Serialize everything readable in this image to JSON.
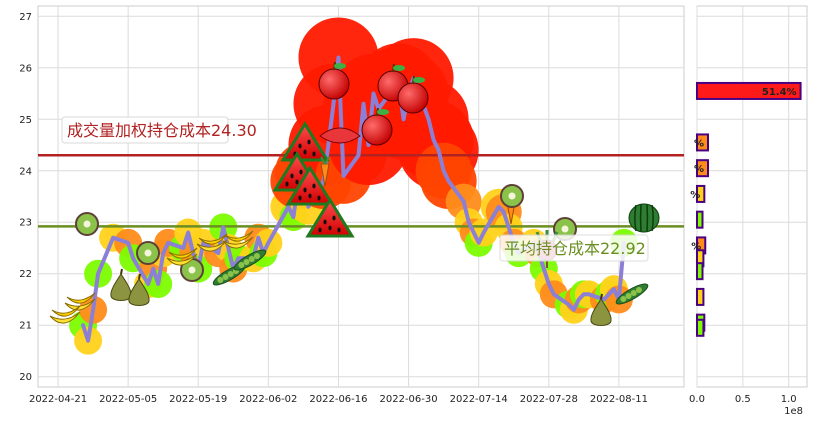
{
  "chart_data": [
    {
      "type": "line",
      "title": "",
      "xlabel": "",
      "ylabel": "",
      "x_tick_labels": [
        "2022-04-21",
        "2022-05-05",
        "2022-05-19",
        "2022-06-02",
        "2022-06-16",
        "2022-06-30",
        "2022-07-14",
        "2022-07-28",
        "2022-08-11"
      ],
      "y_ticks": [
        20,
        21,
        22,
        23,
        24,
        25,
        26,
        27
      ],
      "xlim": [
        "2022-04-17",
        "2022-08-24"
      ],
      "ylim": [
        19.8,
        27.2
      ],
      "grid": true,
      "series": [
        {
          "values": [
            [
              "2022-04-26",
              21.0
            ],
            [
              "2022-04-27",
              20.7
            ],
            [
              "2022-04-28",
              21.3
            ],
            [
              "2022-04-29",
              22.0
            ],
            [
              "2022-05-02",
              22.7
            ],
            [
              "2022-05-05",
              22.6
            ],
            [
              "2022-05-06",
              22.3
            ],
            [
              "2022-05-09",
              21.8
            ],
            [
              "2022-05-10",
              22.1
            ],
            [
              "2022-05-11",
              21.8
            ],
            [
              "2022-05-12",
              22.4
            ],
            [
              "2022-05-13",
              22.6
            ],
            [
              "2022-05-16",
              22.5
            ],
            [
              "2022-05-17",
              22.8
            ],
            [
              "2022-05-18",
              22.4
            ],
            [
              "2022-05-19",
              22.1
            ],
            [
              "2022-05-20",
              22.6
            ],
            [
              "2022-05-23",
              22.4
            ],
            [
              "2022-05-24",
              22.9
            ],
            [
              "2022-05-25",
              22.5
            ],
            [
              "2022-05-26",
              22.1
            ],
            [
              "2022-05-27",
              22.3
            ],
            [
              "2022-05-30",
              22.3
            ],
            [
              "2022-05-31",
              22.7
            ],
            [
              "2022-06-01",
              22.4
            ],
            [
              "2022-06-02",
              22.6
            ],
            [
              "2022-06-06",
              23.3
            ],
            [
              "2022-06-07",
              23.1
            ],
            [
              "2022-06-08",
              23.8
            ],
            [
              "2022-06-09",
              24.0
            ],
            [
              "2022-06-10",
              23.3
            ],
            [
              "2022-06-13",
              23.8
            ],
            [
              "2022-06-14",
              24.5
            ],
            [
              "2022-06-15",
              25.3
            ],
            [
              "2022-06-16",
              26.2
            ],
            [
              "2022-06-17",
              23.9
            ],
            [
              "2022-06-20",
              24.3
            ],
            [
              "2022-06-21",
              25.3
            ],
            [
              "2022-06-22",
              24.5
            ],
            [
              "2022-06-23",
              25.5
            ],
            [
              "2022-06-24",
              25.2
            ],
            [
              "2022-06-27",
              25.6
            ],
            [
              "2022-06-28",
              25.7
            ],
            [
              "2022-06-29",
              25.0
            ],
            [
              "2022-06-30",
              25.5
            ],
            [
              "2022-07-01",
              25.8
            ],
            [
              "2022-07-04",
              25.0
            ],
            [
              "2022-07-05",
              24.6
            ],
            [
              "2022-07-06",
              24.4
            ],
            [
              "2022-07-07",
              24.0
            ],
            [
              "2022-07-08",
              23.8
            ],
            [
              "2022-07-11",
              23.4
            ],
            [
              "2022-07-12",
              23.0
            ],
            [
              "2022-07-13",
              22.8
            ],
            [
              "2022-07-14",
              22.6
            ],
            [
              "2022-07-15",
              22.8
            ],
            [
              "2022-07-18",
              23.3
            ],
            [
              "2022-07-19",
              23.2
            ],
            [
              "2022-07-20",
              22.9
            ],
            [
              "2022-07-21",
              22.6
            ],
            [
              "2022-07-22",
              22.4
            ],
            [
              "2022-07-25",
              22.6
            ],
            [
              "2022-07-26",
              22.4
            ],
            [
              "2022-07-27",
              22.1
            ],
            [
              "2022-07-28",
              21.8
            ],
            [
              "2022-07-29",
              21.6
            ],
            [
              "2022-08-01",
              21.4
            ],
            [
              "2022-08-02",
              21.3
            ],
            [
              "2022-08-03",
              21.5
            ],
            [
              "2022-08-04",
              21.6
            ],
            [
              "2022-08-05",
              21.6
            ],
            [
              "2022-08-08",
              21.5
            ],
            [
              "2022-08-09",
              21.6
            ],
            [
              "2022-08-10",
              21.7
            ],
            [
              "2022-08-11",
              21.5
            ],
            [
              "2022-08-12",
              22.6
            ]
          ]
        }
      ],
      "reference_lines": [
        {
          "label": "成交量加权持仓成本24.30",
          "value": 24.3,
          "color": "#b22222",
          "text_color": "#b22222"
        },
        {
          "label": "平均持仓成本22.92",
          "value": 22.92,
          "color": "#6b8e23",
          "text_color": "#6b8e23"
        }
      ],
      "line_color": "#8c7fd6"
    },
    {
      "type": "bar",
      "orientation": "horizontal",
      "x_tick_labels": [
        "0.0",
        "0.5",
        "1.0"
      ],
      "x_unit": "1e8",
      "xlim": [
        0,
        1.2
      ],
      "ylim": [
        19.8,
        27.2
      ],
      "bars": [
        {
          "price": 25.55,
          "value": 1.13,
          "label": "51.4%",
          "color": "#ff1a1a"
        },
        {
          "price": 24.55,
          "value": 0.12,
          "label": "%",
          "color": "#ff8c1a"
        },
        {
          "price": 24.05,
          "value": 0.12,
          "label": "%",
          "color": "#ff8c1a"
        },
        {
          "price": 23.55,
          "value": 0.08,
          "label": "%",
          "color": "#ffd21a"
        },
        {
          "price": 23.05,
          "value": 0.06,
          "label": "",
          "color": "#7cfc00"
        },
        {
          "price": 22.55,
          "value": 0.09,
          "label": "%",
          "color": "#ff8c1a"
        },
        {
          "price": 22.3,
          "value": 0.07,
          "label": "",
          "color": "#ffd21a"
        },
        {
          "price": 22.05,
          "value": 0.06,
          "label": "",
          "color": "#7cfc00"
        },
        {
          "price": 21.55,
          "value": 0.07,
          "label": "",
          "color": "#ffd21a"
        },
        {
          "price": 21.05,
          "value": 0.08,
          "label": "",
          "color": "#7cfc00"
        },
        {
          "price": 20.95,
          "value": 0.07,
          "label": "",
          "color": "#7cfc00"
        }
      ]
    }
  ]
}
